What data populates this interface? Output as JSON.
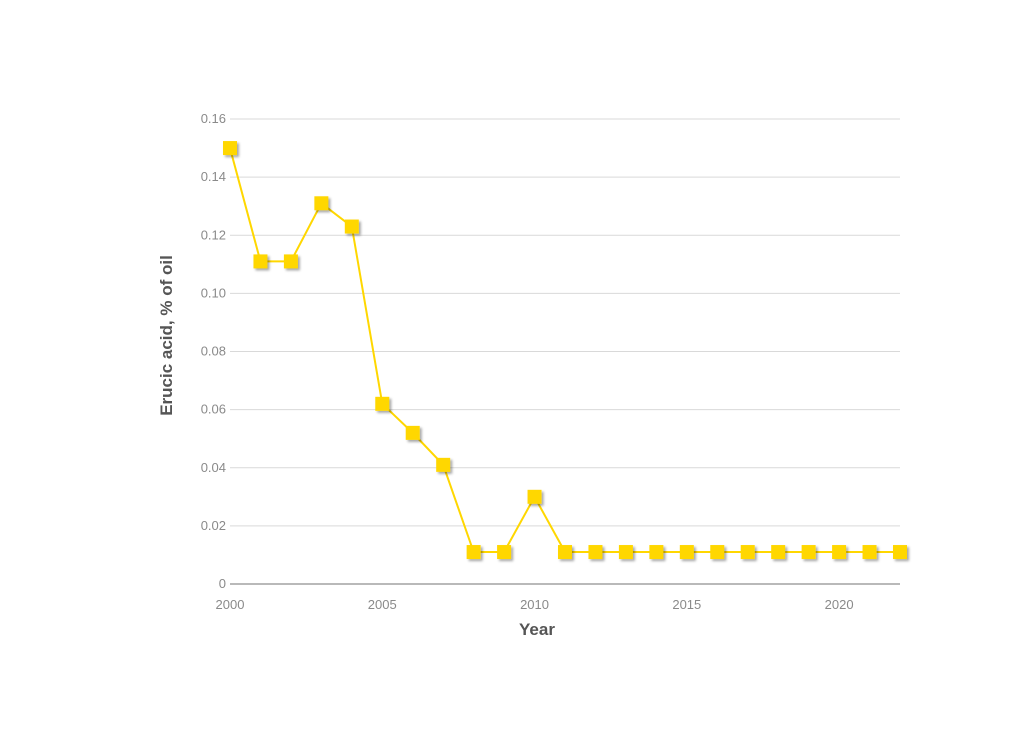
{
  "chart_data": {
    "type": "line",
    "title": "",
    "xlabel": "Year",
    "ylabel": "Erucic acid, % of oil",
    "xlim": [
      2000,
      2022
    ],
    "ylim": [
      0,
      0.16
    ],
    "xticks": [
      2000,
      2005,
      2010,
      2015,
      2020
    ],
    "xtick_labels": [
      "2000",
      "2005",
      "2010",
      "2015",
      "2020"
    ],
    "yticks": [
      0,
      0.02,
      0.04,
      0.06,
      0.08,
      0.1,
      0.12,
      0.14,
      0.16
    ],
    "ytick_labels": [
      "0",
      "0.02",
      "0.04",
      "0.06",
      "0.08",
      "0.10",
      "0.12",
      "0.14",
      "0.16"
    ],
    "grid": "horizontal",
    "legend": "none",
    "series": [
      {
        "color": "#ffd700",
        "marker": "square",
        "x": [
          2000,
          2001,
          2002,
          2003,
          2004,
          2005,
          2006,
          2007,
          2008,
          2009,
          2010,
          2011,
          2012,
          2013,
          2014,
          2015,
          2016,
          2017,
          2018,
          2019,
          2020,
          2021,
          2022
        ],
        "y": [
          0.15,
          0.111,
          0.111,
          0.131,
          0.123,
          0.062,
          0.052,
          0.041,
          0.011,
          0.011,
          0.03,
          0.011,
          0.011,
          0.011,
          0.011,
          0.011,
          0.011,
          0.011,
          0.011,
          0.011,
          0.011,
          0.011,
          0.011
        ]
      }
    ]
  }
}
